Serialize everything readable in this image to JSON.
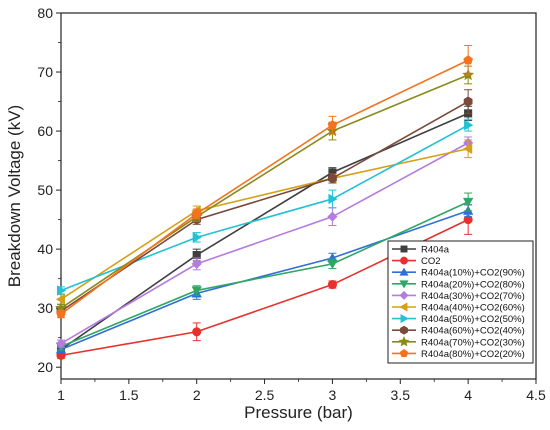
{
  "chart_data": {
    "type": "line",
    "xlabel": "Pressure (bar)",
    "ylabel": "Breakdown Voltage (kV)",
    "xlim": [
      1,
      4.5
    ],
    "ylim": [
      18,
      80
    ],
    "x_ticks": [
      "1",
      "1.5",
      "2",
      "2.5",
      "3",
      "3.5",
      "4",
      "4.5"
    ],
    "y_ticks": [
      "20",
      "30",
      "40",
      "50",
      "60",
      "70",
      "80"
    ],
    "x": [
      1,
      2,
      3,
      4
    ],
    "legend_position": "bottom-right",
    "grid": false,
    "series": [
      {
        "name": "R404a",
        "color": "#3f3f3f",
        "marker": "square",
        "values": [
          23,
          39,
          53,
          63
        ],
        "errors": [
          0.8,
          1.0,
          0.8,
          1.2
        ]
      },
      {
        "name": "CO2",
        "color": "#e8302d",
        "marker": "circle",
        "values": [
          22,
          26,
          34,
          45
        ],
        "errors": [
          0.5,
          1.5,
          0.6,
          2.5
        ]
      },
      {
        "name": "R404a(10%)+CO2(90%)",
        "color": "#2f6fd6",
        "marker": "triangle-up",
        "values": [
          23,
          32.5,
          38.5,
          46.5
        ],
        "errors": [
          0.6,
          1.0,
          0.8,
          1.0
        ]
      },
      {
        "name": "R404a(20%)+CO2(80%)",
        "color": "#2fa763",
        "marker": "triangle-down",
        "values": [
          23.5,
          33,
          37.5,
          48
        ],
        "errors": [
          0.6,
          0.8,
          0.8,
          1.5
        ]
      },
      {
        "name": "R404a(30%)+CO2(70%)",
        "color": "#b57be0",
        "marker": "diamond",
        "values": [
          24,
          37.5,
          45.5,
          58
        ],
        "errors": [
          0.6,
          1.0,
          1.5,
          1.0
        ]
      },
      {
        "name": "R404a(40%)+CO2(60%)",
        "color": "#d4a017",
        "marker": "triangle-left",
        "values": [
          31.5,
          46.5,
          52,
          57
        ],
        "errors": [
          0.8,
          0.8,
          0.8,
          1.5
        ]
      },
      {
        "name": "R404a(50%)+CO2(50%)",
        "color": "#22c1d4",
        "marker": "triangle-right",
        "values": [
          33,
          42,
          48.5,
          61
        ],
        "errors": [
          0.6,
          0.8,
          1.5,
          1.0
        ]
      },
      {
        "name": "R404a(60%)+CO2(40%)",
        "color": "#7a4a3a",
        "marker": "hexagon",
        "values": [
          29.5,
          45,
          52,
          65
        ],
        "errors": [
          0.6,
          0.8,
          0.8,
          2.0
        ]
      },
      {
        "name": "R404a(70%)+CO2(30%)",
        "color": "#8a8a1a",
        "marker": "star",
        "values": [
          30,
          45.5,
          60,
          69.5
        ],
        "errors": [
          0.6,
          0.8,
          1.5,
          1.5
        ]
      },
      {
        "name": "R404a(80%)+CO2(20%)",
        "color": "#f5731e",
        "marker": "pentagon",
        "values": [
          29,
          46,
          61,
          72
        ],
        "errors": [
          0.6,
          0.8,
          1.5,
          2.5
        ]
      }
    ]
  }
}
